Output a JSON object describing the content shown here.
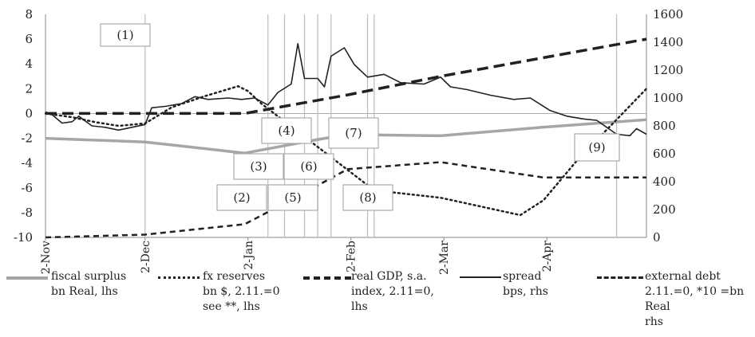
{
  "chart_data": {
    "type": "line",
    "categories": [
      "2-Nov",
      "2-Dec",
      "2-Jan",
      "2-Feb",
      "2-Mar",
      "2-Apr"
    ],
    "x_domain": [
      "2-Nov",
      "2-May"
    ],
    "ylim": [
      -10,
      8
    ],
    "yticks": [
      -10,
      -8,
      -6,
      -4,
      -2,
      0,
      2,
      4,
      6,
      8
    ],
    "y2lim": [
      0,
      1600
    ],
    "y2ticks": [
      0,
      200,
      400,
      600,
      800,
      1000,
      1200,
      1400,
      1600
    ],
    "event_markers": [
      "2-Dec",
      "8-Jan",
      "13-Jan",
      "19-Jan",
      "23-Jan",
      "27-Jan",
      "7-Feb",
      "9-Feb",
      "23-Apr"
    ],
    "annotations": [
      "(1)",
      "(2)",
      "(3)",
      "(4)",
      "(5)",
      "(6)",
      "(7)",
      "(8)",
      "(9)"
    ],
    "series": [
      {
        "name": "fiscal surplus bn Real, lhs",
        "axis": "left",
        "style": "solid-gray",
        "color": "#a6a6a6",
        "points": [
          [
            "2-Nov",
            -2.0
          ],
          [
            "2-Dec",
            -2.3
          ],
          [
            "1-Jan",
            -3.2
          ],
          [
            "23-Jan",
            -2.1
          ],
          [
            "1-Feb",
            -1.7
          ],
          [
            "1-Mar",
            -1.8
          ],
          [
            "1-Apr",
            -1.1
          ],
          [
            "2-May",
            -0.5
          ]
        ]
      },
      {
        "name": "fx reserves bn $, 2.11.=0 see **, lhs",
        "axis": "left",
        "style": "dotted",
        "color": "#222222",
        "points": [
          [
            "2-Nov",
            0.0
          ],
          [
            "10-Nov",
            -0.3
          ],
          [
            "17-Nov",
            -0.7
          ],
          [
            "24-Nov",
            -1.0
          ],
          [
            "2-Dec",
            -0.8
          ],
          [
            "10-Dec",
            0.5
          ],
          [
            "20-Dec",
            1.4
          ],
          [
            "30-Dec",
            2.2
          ],
          [
            "2-Jan",
            1.8
          ],
          [
            "6-Jan",
            0.8
          ],
          [
            "9-Feb",
            -6.2
          ],
          [
            "1-Mar",
            -6.8
          ],
          [
            "25-Mar",
            -8.2
          ],
          [
            "1-Apr",
            -7.0
          ],
          [
            "12-Apr",
            -3.5
          ],
          [
            "23-Apr",
            -0.5
          ],
          [
            "2-May",
            2.0
          ]
        ]
      },
      {
        "name": "real GDP, s.a. index, 2.11=0, lhs",
        "axis": "left",
        "style": "dashed-long",
        "color": "#222222",
        "points": [
          [
            "2-Nov",
            0.0
          ],
          [
            "1-Jan",
            0.0
          ],
          [
            "1-Feb",
            1.5
          ],
          [
            "1-Mar",
            3.0
          ],
          [
            "1-Apr",
            4.5
          ],
          [
            "2-May",
            6.0
          ]
        ]
      },
      {
        "name": "spread bps, rhs",
        "axis": "right",
        "style": "solid",
        "color": "#222222",
        "points": [
          [
            "2-Nov",
            900
          ],
          [
            "4-Nov",
            880
          ],
          [
            "7-Nov",
            820
          ],
          [
            "10-Nov",
            830
          ],
          [
            "12-Nov",
            870
          ],
          [
            "16-Nov",
            800
          ],
          [
            "20-Nov",
            790
          ],
          [
            "24-Nov",
            770
          ],
          [
            "28-Nov",
            790
          ],
          [
            "2-Dec",
            810
          ],
          [
            "4-Dec",
            930
          ],
          [
            "8-Dec",
            940
          ],
          [
            "13-Dec",
            960
          ],
          [
            "17-Dec",
            1010
          ],
          [
            "21-Dec",
            990
          ],
          [
            "27-Dec",
            1000
          ],
          [
            "31-Dec",
            990
          ],
          [
            "4-Jan",
            1000
          ],
          [
            "8-Jan",
            950
          ],
          [
            "11-Jan",
            1040
          ],
          [
            "15-Jan",
            1100
          ],
          [
            "17-Jan",
            1390
          ],
          [
            "19-Jan",
            1140
          ],
          [
            "23-Jan",
            1140
          ],
          [
            "25-Jan",
            1080
          ],
          [
            "27-Jan",
            1300
          ],
          [
            "31-Jan",
            1360
          ],
          [
            "3-Feb",
            1240
          ],
          [
            "7-Feb",
            1150
          ],
          [
            "12-Feb",
            1170
          ],
          [
            "17-Feb",
            1110
          ],
          [
            "24-Feb",
            1100
          ],
          [
            "1-Mar",
            1150
          ],
          [
            "4-Mar",
            1080
          ],
          [
            "9-Mar",
            1060
          ],
          [
            "16-Mar",
            1020
          ],
          [
            "23-Mar",
            990
          ],
          [
            "28-Mar",
            1000
          ],
          [
            "3-Apr",
            910
          ],
          [
            "8-Apr",
            870
          ],
          [
            "13-Apr",
            850
          ],
          [
            "17-Apr",
            840
          ],
          [
            "23-Apr",
            740
          ],
          [
            "27-Apr",
            730
          ],
          [
            "29-Apr",
            780
          ],
          [
            "2-May",
            740
          ]
        ]
      },
      {
        "name": "external debt 2.11.=0, *10 =bn Real rhs",
        "axis": "right",
        "style": "dashed",
        "color": "#222222",
        "points": [
          [
            "2-Nov",
            0
          ],
          [
            "2-Dec",
            20
          ],
          [
            "1-Jan",
            95
          ],
          [
            "15-Jan",
            270
          ],
          [
            "1-Feb",
            490
          ],
          [
            "1-Mar",
            540
          ],
          [
            "1-Apr",
            430
          ],
          [
            "2-May",
            430
          ]
        ]
      }
    ]
  },
  "legend": [
    {
      "label": "fiscal surplus\nbn Real, lhs"
    },
    {
      "label": "fx reserves\nbn $, 2.11.=0\nsee **, lhs"
    },
    {
      "label": "real GDP, s.a.\nindex, 2.11=0, lhs"
    },
    {
      "label": "spread\nbps, rhs"
    },
    {
      "label": "external debt\n2.11.=0, *10 =bn Real\nrhs"
    }
  ]
}
